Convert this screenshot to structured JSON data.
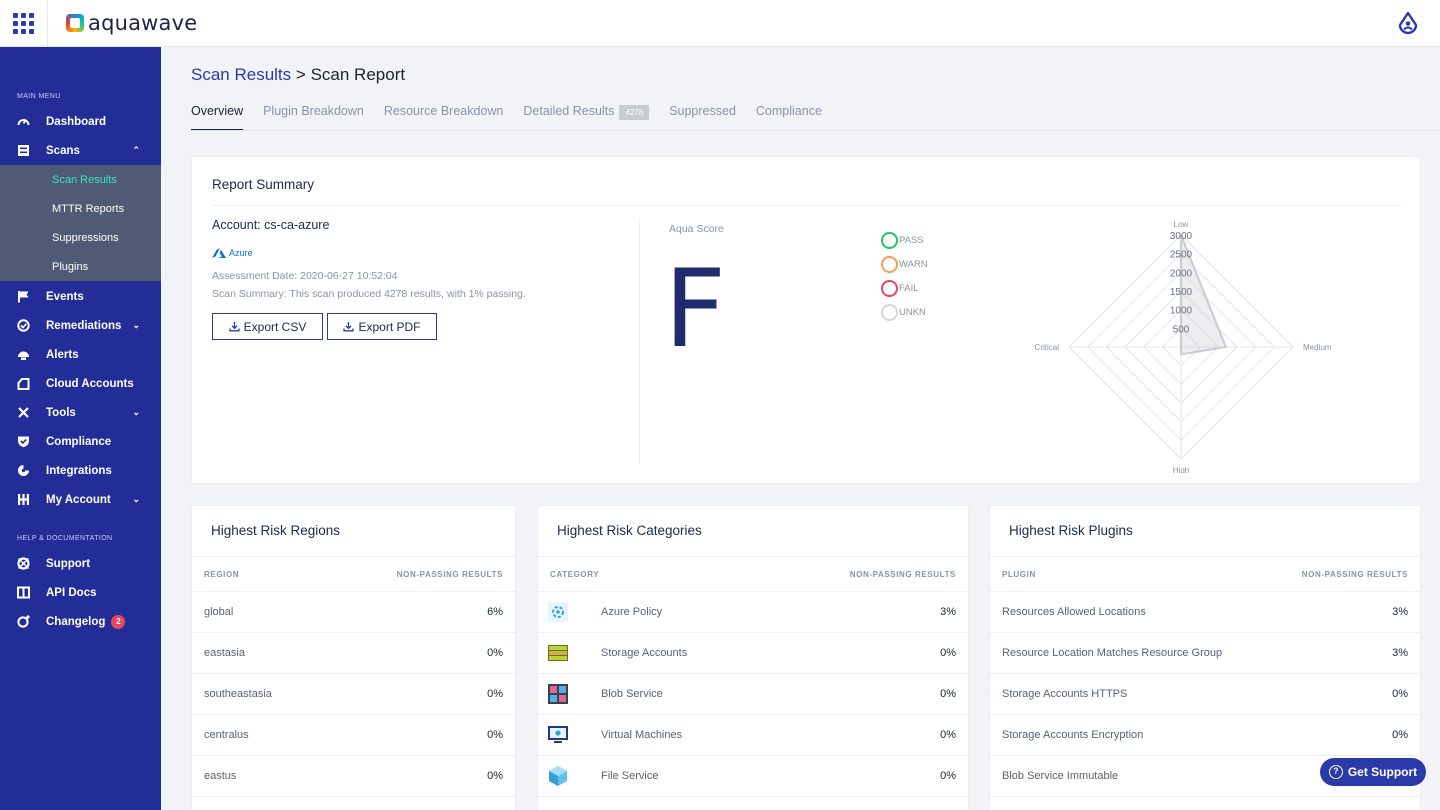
{
  "app": {
    "name": "aquawave"
  },
  "sidebar": {
    "main_menu_label": "MAIN MENU",
    "items": [
      {
        "label": "Dashboard",
        "icon": "speedometer-icon"
      },
      {
        "label": "Scans",
        "icon": "scan-list-icon"
      },
      {
        "label": "Events",
        "icon": "flag-icon"
      },
      {
        "label": "Remediations",
        "icon": "remediation-icon"
      },
      {
        "label": "Alerts",
        "icon": "alert-icon"
      },
      {
        "label": "Cloud Accounts",
        "icon": "cloud-icon"
      },
      {
        "label": "Tools",
        "icon": "tools-icon"
      },
      {
        "label": "Compliance",
        "icon": "shield-icon"
      },
      {
        "label": "Integrations",
        "icon": "plug-icon"
      },
      {
        "label": "My Account",
        "icon": "account-grid-icon"
      }
    ],
    "scan_subitems": [
      {
        "label": "Scan Results"
      },
      {
        "label": "MTTR Reports"
      },
      {
        "label": "Suppressions"
      },
      {
        "label": "Plugins"
      }
    ],
    "help_label": "HELP & DOCUMENTATION",
    "help_items": [
      {
        "label": "Support",
        "icon": "lifebuoy-icon"
      },
      {
        "label": "API Docs",
        "icon": "book-icon"
      },
      {
        "label": "Changelog",
        "icon": "changelog-icon",
        "badge": "2"
      }
    ]
  },
  "breadcrumb": {
    "parent": "Scan Results",
    "separator": ">",
    "current": "Scan Report"
  },
  "tabs": [
    {
      "label": "Overview"
    },
    {
      "label": "Plugin Breakdown"
    },
    {
      "label": "Resource Breakdown"
    },
    {
      "label": "Detailed Results",
      "count": "4278"
    },
    {
      "label": "Suppressed"
    },
    {
      "label": "Compliance"
    }
  ],
  "summary": {
    "title": "Report Summary",
    "account": "Account: cs-ca-azure",
    "provider": "Azure",
    "assessment_date": "Assessment Date: 2020-06-27 10:52:04",
    "scan_summary": "Scan Summary: This scan produced 4278 results, with 1% passing.",
    "export_csv": "Export CSV",
    "export_pdf": "Export PDF",
    "score_label": "Aqua Score",
    "score": "F",
    "legend": [
      {
        "label": "PASS",
        "color": "#22c55e"
      },
      {
        "label": "WARN",
        "color": "#f59e5b"
      },
      {
        "label": "FAIL",
        "color": "#e8465a"
      },
      {
        "label": "UNKN",
        "color": "#d4d7de"
      }
    ]
  },
  "chart_data": {
    "type": "radar",
    "axes": [
      "Low",
      "Medium",
      "High",
      "Critical"
    ],
    "ticks": [
      "500",
      "1000",
      "1500",
      "2000",
      "2500",
      "3000"
    ],
    "rmax": 3000,
    "values": [
      3000,
      1200,
      200,
      0
    ]
  },
  "regions": {
    "title": "Highest Risk Regions",
    "col1": "REGION",
    "col2": "NON-PASSING RESULTS",
    "rows": [
      {
        "name": "global",
        "value": "6%"
      },
      {
        "name": "eastasia",
        "value": "0%"
      },
      {
        "name": "southeastasia",
        "value": "0%"
      },
      {
        "name": "centralus",
        "value": "0%"
      },
      {
        "name": "eastus",
        "value": "0%"
      }
    ]
  },
  "categories": {
    "title": "Highest Risk Categories",
    "col1": "CATEGORY",
    "col2": "NON-PASSING RESULTS",
    "rows": [
      {
        "name": "Azure Policy",
        "value": "3%",
        "icon": "azure-policy-icon"
      },
      {
        "name": "Storage Accounts",
        "value": "0%",
        "icon": "storage-accounts-icon"
      },
      {
        "name": "Blob Service",
        "value": "0%",
        "icon": "blob-service-icon"
      },
      {
        "name": "Virtual Machines",
        "value": "0%",
        "icon": "virtual-machine-icon"
      },
      {
        "name": "File Service",
        "value": "0%",
        "icon": "file-service-icon"
      }
    ]
  },
  "plugins": {
    "title": "Highest Risk Plugins",
    "col1": "PLUGIN",
    "col2": "NON-PASSING RESULTS",
    "rows": [
      {
        "name": "Resources Allowed Locations",
        "value": "3%"
      },
      {
        "name": "Resource Location Matches Resource Group",
        "value": "3%"
      },
      {
        "name": "Storage Accounts HTTPS",
        "value": "0%"
      },
      {
        "name": "Storage Accounts Encryption",
        "value": "0%"
      },
      {
        "name": "Blob Service Immutable",
        "value": ""
      }
    ]
  },
  "support_button": "Get Support"
}
